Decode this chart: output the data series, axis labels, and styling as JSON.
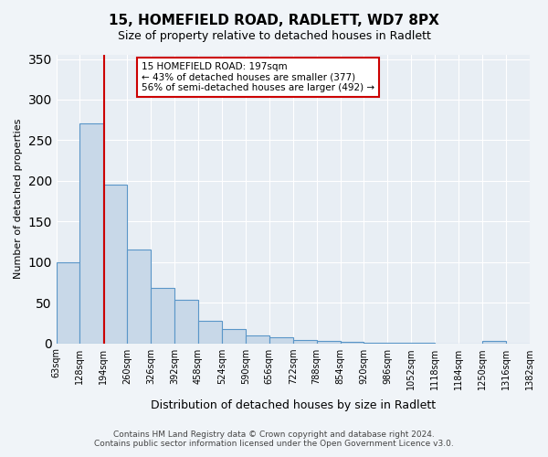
{
  "title": "15, HOMEFIELD ROAD, RADLETT, WD7 8PX",
  "subtitle": "Size of property relative to detached houses in Radlett",
  "xlabel": "Distribution of detached houses by size in Radlett",
  "ylabel": "Number of detached properties",
  "bar_values": [
    100,
    271,
    195,
    115,
    68,
    54,
    28,
    17,
    10,
    7,
    4,
    3,
    2,
    1,
    1,
    1,
    0,
    0,
    3,
    0
  ],
  "bin_labels": [
    "63sqm",
    "128sqm",
    "194sqm",
    "260sqm",
    "326sqm",
    "392sqm",
    "458sqm",
    "524sqm",
    "590sqm",
    "656sqm",
    "722sqm",
    "788sqm",
    "854sqm",
    "920sqm",
    "986sqm",
    "1052sqm",
    "1118sqm",
    "1184sqm",
    "1250sqm",
    "1316sqm",
    "1382sqm"
  ],
  "bar_color": "#c8d8e8",
  "bar_edge_color": "#5a96c8",
  "bar_edge_width": 0.8,
  "vline_x": 197,
  "vline_color": "#cc0000",
  "annotation_line1": "15 HOMEFIELD ROAD: 197sqm",
  "annotation_line2": "← 43% of detached houses are smaller (377)",
  "annotation_line3": "56% of semi-detached houses are larger (492) →",
  "annotation_box_color": "#cc0000",
  "ylim": [
    0,
    355
  ],
  "yticks": [
    0,
    50,
    100,
    150,
    200,
    250,
    300,
    350
  ],
  "bin_edges": [
    63,
    128,
    194,
    260,
    326,
    392,
    458,
    524,
    590,
    656,
    722,
    788,
    854,
    920,
    986,
    1052,
    1118,
    1184,
    1250,
    1316,
    1382
  ],
  "footer_line1": "Contains HM Land Registry data © Crown copyright and database right 2024.",
  "footer_line2": "Contains public sector information licensed under the Open Government Licence v3.0.",
  "bg_color": "#f0f4f8",
  "plot_bg_color": "#e8eef4"
}
